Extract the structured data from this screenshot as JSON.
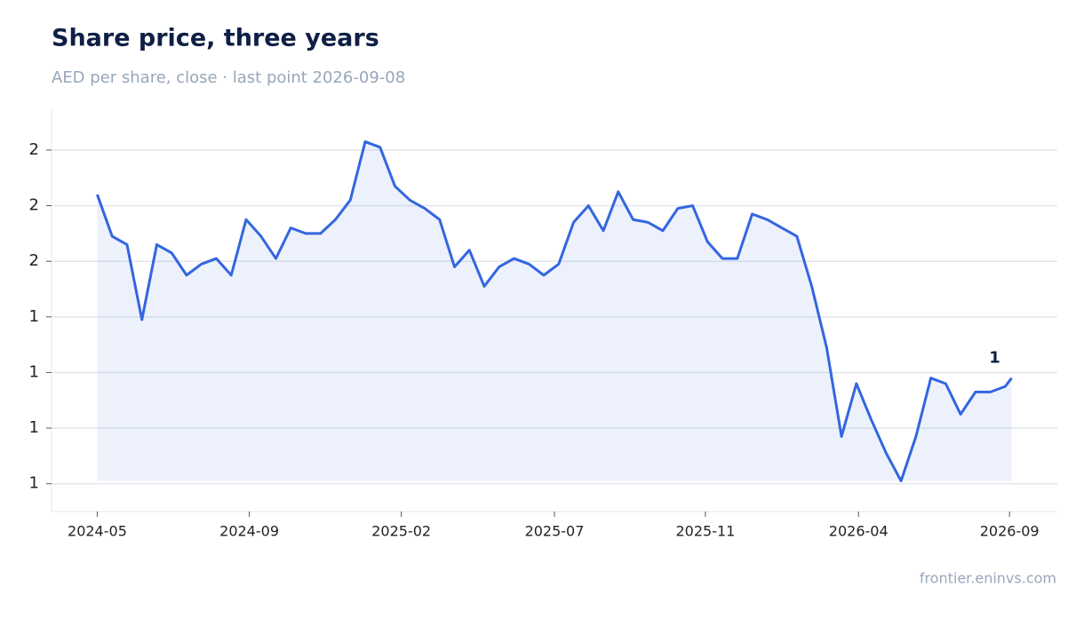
{
  "chart_data": {
    "type": "line",
    "title": "Share price, three years",
    "subtitle": "AED per share, close · last point 2026-09-08",
    "source": "frontier.eninvs.com",
    "x": [
      "2024-05-01",
      "2024-05-15",
      "2024-05-29",
      "2024-06-12",
      "2024-06-26",
      "2024-07-10",
      "2024-07-24",
      "2024-08-07",
      "2024-08-21",
      "2024-09-04",
      "2024-09-18",
      "2024-10-02",
      "2024-10-16",
      "2024-10-30",
      "2024-11-13",
      "2024-11-27",
      "2024-12-11",
      "2024-12-25",
      "2025-01-08",
      "2025-01-22",
      "2025-02-05",
      "2025-02-19",
      "2025-03-05",
      "2025-03-19",
      "2025-04-02",
      "2025-04-16",
      "2025-04-30",
      "2025-05-14",
      "2025-05-28",
      "2025-06-11",
      "2025-06-25",
      "2025-07-09",
      "2025-07-23",
      "2025-08-06",
      "2025-08-20",
      "2025-09-03",
      "2025-09-17",
      "2025-10-01",
      "2025-10-15",
      "2025-10-29",
      "2025-11-12",
      "2025-11-26",
      "2025-12-10",
      "2025-12-24",
      "2026-01-07",
      "2026-01-21",
      "2026-02-04",
      "2026-02-18",
      "2026-03-04",
      "2026-03-18",
      "2026-04-01",
      "2026-04-15",
      "2026-04-29",
      "2026-05-13",
      "2026-05-27",
      "2026-06-10",
      "2026-06-24",
      "2026-07-08",
      "2026-07-22",
      "2026-08-05",
      "2026-08-19",
      "2026-09-02",
      "2026-09-08"
    ],
    "series": [
      {
        "name": "Close",
        "color": "#3366e0",
        "values": [
          1.84,
          1.69,
          1.66,
          1.39,
          1.66,
          1.63,
          1.55,
          1.59,
          1.61,
          1.55,
          1.75,
          1.69,
          1.61,
          1.72,
          1.7,
          1.7,
          1.75,
          1.82,
          2.03,
          2.01,
          1.87,
          1.82,
          1.79,
          1.75,
          1.58,
          1.64,
          1.51,
          1.58,
          1.61,
          1.59,
          1.55,
          1.59,
          1.74,
          1.8,
          1.71,
          1.85,
          1.75,
          1.74,
          1.71,
          1.79,
          1.8,
          1.67,
          1.61,
          1.61,
          1.77,
          1.75,
          1.72,
          1.69,
          1.51,
          1.29,
          0.97,
          1.16,
          1.03,
          0.91,
          0.81,
          0.97,
          1.18,
          1.16,
          1.05,
          1.13,
          1.13,
          1.15,
          1.18
        ]
      }
    ],
    "last_value_label": "1",
    "xlim": [
      "2024-03-19",
      "2026-10-21"
    ],
    "xticks": [
      {
        "value": "2024-05-01",
        "label": "2024-05"
      },
      {
        "value": "2024-09-21",
        "label": "2024-09"
      },
      {
        "value": "2025-02-11",
        "label": "2025-02"
      },
      {
        "value": "2025-07-05",
        "label": "2025-07"
      },
      {
        "value": "2025-11-24",
        "label": "2025-11"
      },
      {
        "value": "2026-04-17",
        "label": "2026-04"
      },
      {
        "value": "2026-09-06",
        "label": "2026-09"
      }
    ],
    "ylim": [
      0.7,
      2.15
    ],
    "yticks": [
      {
        "value": 0.8,
        "label": "1"
      },
      {
        "value": 1.0,
        "label": "1"
      },
      {
        "value": 1.2,
        "label": "1"
      },
      {
        "value": 1.4,
        "label": "1"
      },
      {
        "value": 1.6,
        "label": "2"
      },
      {
        "value": 1.8,
        "label": "2"
      },
      {
        "value": 2.0,
        "label": "2"
      }
    ],
    "grid": true
  }
}
